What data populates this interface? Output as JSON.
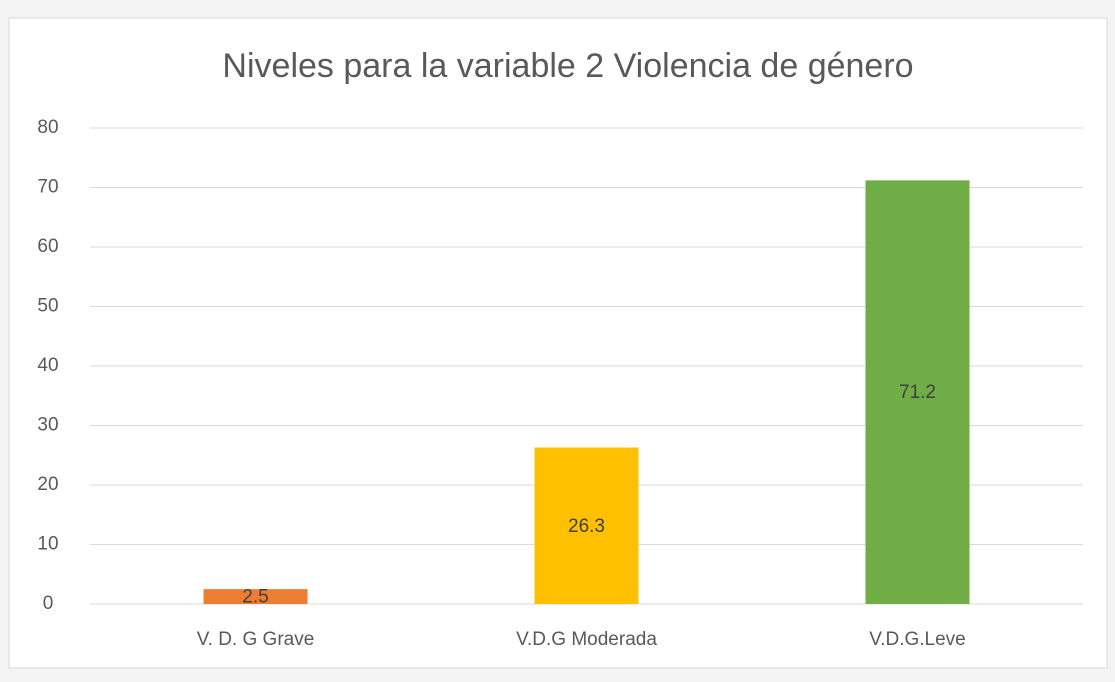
{
  "chart_data": {
    "type": "bar",
    "title": "Niveles para la variable 2 Violencia de género",
    "categories": [
      "V. D. G Grave",
      "V.D.G Moderada",
      "V.D.G.Leve"
    ],
    "values": [
      2.5,
      26.3,
      71.2
    ],
    "colors": [
      "#ed7d31",
      "#ffc000",
      "#70ad47"
    ],
    "ylim": [
      0,
      80
    ],
    "yticks": [
      0,
      10,
      20,
      30,
      40,
      50,
      60,
      70,
      80
    ],
    "grid": true
  }
}
